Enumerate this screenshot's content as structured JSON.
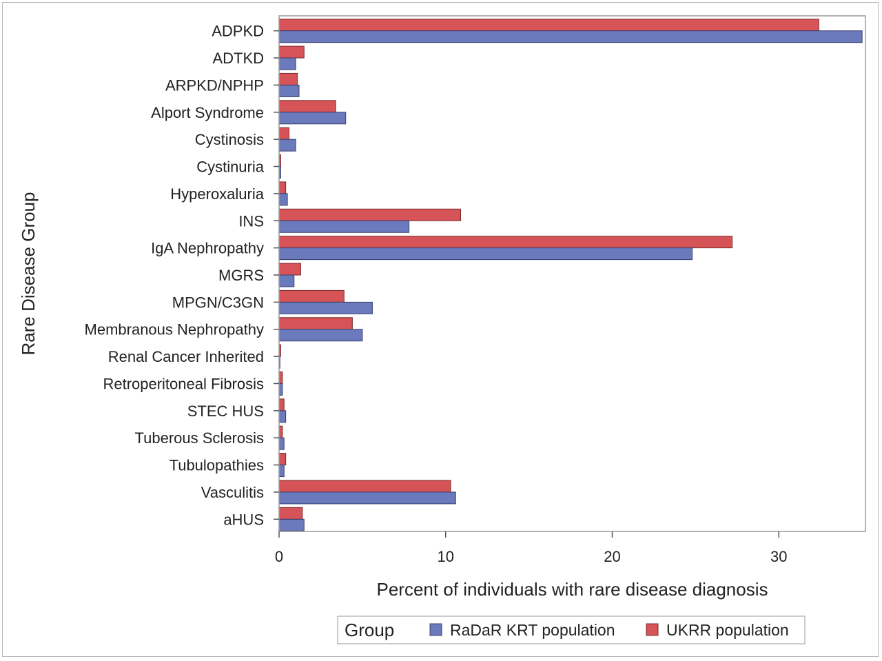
{
  "chart_data": {
    "type": "bar",
    "orientation": "horizontal",
    "categories": [
      "ADPKD",
      "ADTKD",
      "ARPKD/NPHP",
      "Alport Syndrome",
      "Cystinosis",
      "Cystinuria",
      "Hyperoxaluria",
      "INS",
      "IgA Nephropathy",
      "MGRS",
      "MPGN/C3GN",
      "Membranous Nephropathy",
      "Renal Cancer Inherited",
      "Retroperitoneal Fibrosis",
      "STEC HUS",
      "Tuberous Sclerosis",
      "Tubulopathies",
      "Vasculitis",
      "aHUS"
    ],
    "series": [
      {
        "name": "RaDaR KRT population",
        "color": "#6b79bd",
        "values": [
          35.0,
          1.0,
          1.2,
          4.0,
          1.0,
          0.1,
          0.5,
          7.8,
          24.8,
          0.9,
          5.6,
          5.0,
          0.05,
          0.2,
          0.4,
          0.3,
          0.3,
          10.6,
          1.5
        ]
      },
      {
        "name": "UKRR population",
        "color": "#d65457",
        "values": [
          32.4,
          1.5,
          1.1,
          3.4,
          0.6,
          0.1,
          0.4,
          10.9,
          27.2,
          1.3,
          3.9,
          4.4,
          0.1,
          0.2,
          0.3,
          0.2,
          0.4,
          10.3,
          1.4
        ]
      }
    ],
    "xlabel": "Percent of individuals with rare disease diagnosis",
    "ylabel": "Rare Disease Group",
    "xlim": [
      0,
      35.2
    ],
    "xticks": [
      0,
      10,
      20,
      30
    ],
    "grid": false,
    "legend": {
      "title": "Group",
      "placement": "bottom"
    }
  }
}
